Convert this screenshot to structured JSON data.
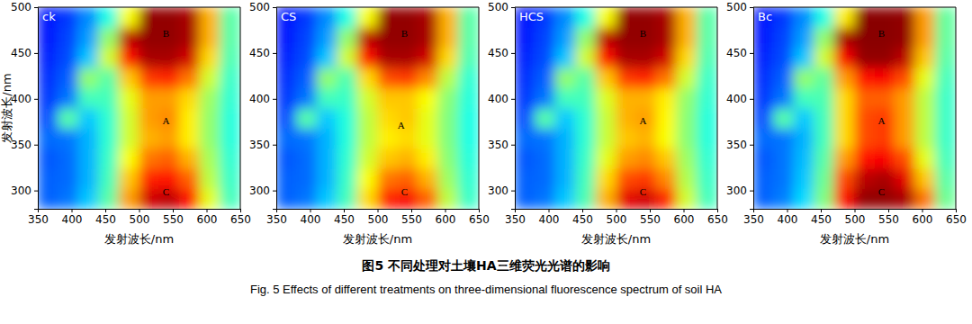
{
  "chart_data": [
    {
      "type": "heatmap",
      "title": "ck",
      "xlabel": "发射波长/nm",
      "ylabel": "发射波长/nm",
      "xlim": [
        350,
        650
      ],
      "ylim": [
        280,
        500
      ],
      "xticks": [
        350,
        400,
        450,
        500,
        550,
        600,
        650
      ],
      "yticks": [
        300,
        350,
        400,
        450,
        500
      ],
      "x_bins": [
        350,
        380,
        410,
        440,
        470,
        500,
        530,
        560,
        590,
        620,
        650
      ],
      "y_bins": [
        280,
        302,
        324,
        346,
        368,
        390,
        412,
        434,
        456,
        478,
        500
      ],
      "zlim": [
        0,
        10
      ],
      "z": [
        [
          2.2,
          2.4,
          3.2,
          4.6,
          7.2,
          9.2,
          9.4,
          8.6,
          6.0,
          4.4
        ],
        [
          2.2,
          2.3,
          3.0,
          4.4,
          6.8,
          8.4,
          8.6,
          7.8,
          5.6,
          4.3
        ],
        [
          2.1,
          2.3,
          3.0,
          4.3,
          6.2,
          7.6,
          7.8,
          7.0,
          5.4,
          4.2
        ],
        [
          2.3,
          2.4,
          3.0,
          4.2,
          5.8,
          7.0,
          7.2,
          6.4,
          5.2,
          4.1
        ],
        [
          2.0,
          4.6,
          3.2,
          4.2,
          5.8,
          7.2,
          7.4,
          6.4,
          5.2,
          4.1
        ],
        [
          1.8,
          2.4,
          4.4,
          4.4,
          6.0,
          7.2,
          7.2,
          6.6,
          5.3,
          4.2
        ],
        [
          1.7,
          2.2,
          5.2,
          4.6,
          6.8,
          8.2,
          8.4,
          7.6,
          5.8,
          4.3
        ],
        [
          1.6,
          2.0,
          3.2,
          5.8,
          8.6,
          9.6,
          9.6,
          9.2,
          6.6,
          4.5
        ],
        [
          1.5,
          1.9,
          2.8,
          5.2,
          9.4,
          9.8,
          9.8,
          9.6,
          7.0,
          4.6
        ],
        [
          1.5,
          1.8,
          2.6,
          4.0,
          6.2,
          9.8,
          9.8,
          9.6,
          7.0,
          4.6
        ]
      ],
      "annotations": [
        {
          "text": "B",
          "x": 540,
          "y": 470
        },
        {
          "text": "A",
          "x": 540,
          "y": 375
        },
        {
          "text": "C",
          "x": 540,
          "y": 297
        }
      ]
    },
    {
      "type": "heatmap",
      "title": "CS",
      "xlabel": "发射波长/nm",
      "xlim": [
        350,
        650
      ],
      "ylim": [
        280,
        500
      ],
      "xticks": [
        350,
        400,
        450,
        500,
        550,
        600,
        650
      ],
      "yticks": [
        300,
        350,
        400,
        450,
        500
      ],
      "x_bins": [
        350,
        380,
        410,
        440,
        470,
        500,
        530,
        560,
        590,
        620,
        650
      ],
      "y_bins": [
        280,
        302,
        324,
        346,
        368,
        390,
        412,
        434,
        456,
        478,
        500
      ],
      "zlim": [
        0,
        10
      ],
      "z": [
        [
          2.2,
          2.4,
          3.2,
          4.4,
          6.6,
          8.4,
          8.8,
          7.8,
          5.6,
          4.3
        ],
        [
          2.2,
          2.3,
          3.0,
          4.3,
          6.2,
          7.6,
          7.8,
          7.0,
          5.3,
          4.2
        ],
        [
          2.1,
          2.3,
          3.0,
          4.2,
          5.8,
          6.8,
          7.0,
          6.4,
          5.1,
          4.1
        ],
        [
          2.3,
          2.4,
          3.0,
          4.1,
          5.6,
          6.4,
          6.6,
          6.0,
          5.0,
          4.0
        ],
        [
          2.0,
          4.6,
          3.2,
          4.1,
          5.6,
          6.6,
          6.8,
          6.0,
          5.0,
          4.0
        ],
        [
          1.8,
          2.4,
          4.4,
          4.3,
          5.8,
          6.8,
          6.8,
          6.2,
          5.1,
          4.1
        ],
        [
          1.7,
          2.2,
          5.2,
          4.5,
          6.6,
          8.0,
          8.2,
          7.4,
          5.6,
          4.2
        ],
        [
          1.6,
          2.0,
          3.2,
          5.8,
          8.6,
          9.6,
          9.6,
          9.2,
          6.6,
          4.5
        ],
        [
          1.5,
          1.9,
          2.8,
          5.2,
          9.4,
          9.8,
          9.8,
          9.6,
          7.0,
          4.6
        ],
        [
          1.5,
          1.8,
          2.6,
          4.0,
          6.2,
          9.8,
          9.8,
          9.6,
          7.0,
          4.6
        ]
      ],
      "annotations": [
        {
          "text": "B",
          "x": 540,
          "y": 470
        },
        {
          "text": "A",
          "x": 535,
          "y": 370
        },
        {
          "text": "C",
          "x": 540,
          "y": 297
        }
      ]
    },
    {
      "type": "heatmap",
      "title": "HCS",
      "xlabel": "发射波长/nm",
      "xlim": [
        350,
        650
      ],
      "ylim": [
        280,
        500
      ],
      "xticks": [
        350,
        400,
        450,
        500,
        550,
        600,
        650
      ],
      "yticks": [
        300,
        350,
        400,
        450,
        500
      ],
      "x_bins": [
        350,
        380,
        410,
        440,
        470,
        500,
        530,
        560,
        590,
        620,
        650
      ],
      "y_bins": [
        280,
        302,
        324,
        346,
        368,
        390,
        412,
        434,
        456,
        478,
        500
      ],
      "zlim": [
        0,
        10
      ],
      "z": [
        [
          2.2,
          2.4,
          3.2,
          4.5,
          7.0,
          9.0,
          9.2,
          8.4,
          5.8,
          4.4
        ],
        [
          2.2,
          2.3,
          3.0,
          4.4,
          6.6,
          8.0,
          8.2,
          7.4,
          5.5,
          4.3
        ],
        [
          2.1,
          2.3,
          3.0,
          4.3,
          6.0,
          7.2,
          7.4,
          6.8,
          5.3,
          4.2
        ],
        [
          2.3,
          2.4,
          3.0,
          4.2,
          5.7,
          6.8,
          7.0,
          6.2,
          5.1,
          4.1
        ],
        [
          2.0,
          4.6,
          3.2,
          4.2,
          5.7,
          7.0,
          7.2,
          6.3,
          5.1,
          4.1
        ],
        [
          1.8,
          2.4,
          4.4,
          4.4,
          5.9,
          7.0,
          7.0,
          6.4,
          5.2,
          4.2
        ],
        [
          1.7,
          2.2,
          5.2,
          4.6,
          6.8,
          8.2,
          8.4,
          7.6,
          5.8,
          4.3
        ],
        [
          1.6,
          2.0,
          3.2,
          5.8,
          8.6,
          9.6,
          9.6,
          9.2,
          6.6,
          4.5
        ],
        [
          1.5,
          1.9,
          2.8,
          5.2,
          9.4,
          9.8,
          9.8,
          9.6,
          7.0,
          4.6
        ],
        [
          1.5,
          1.8,
          2.6,
          4.0,
          6.2,
          9.8,
          9.8,
          9.6,
          7.0,
          4.6
        ]
      ],
      "annotations": [
        {
          "text": "B",
          "x": 540,
          "y": 470
        },
        {
          "text": "A",
          "x": 540,
          "y": 375
        },
        {
          "text": "C",
          "x": 540,
          "y": 297
        }
      ]
    },
    {
      "type": "heatmap",
      "title": "Bc",
      "xlabel": "发射波长/nm",
      "xlim": [
        350,
        650
      ],
      "ylim": [
        280,
        500
      ],
      "xticks": [
        350,
        400,
        450,
        500,
        550,
        600,
        650
      ],
      "yticks": [
        300,
        350,
        400,
        450,
        500
      ],
      "x_bins": [
        350,
        380,
        410,
        440,
        470,
        500,
        530,
        560,
        590,
        620,
        650
      ],
      "y_bins": [
        280,
        302,
        324,
        346,
        368,
        390,
        412,
        434,
        456,
        478,
        500
      ],
      "zlim": [
        0,
        10
      ],
      "z": [
        [
          2.2,
          2.5,
          3.4,
          5.0,
          8.6,
          9.8,
          9.8,
          9.6,
          7.6,
          4.8
        ],
        [
          2.2,
          2.4,
          3.2,
          4.8,
          8.0,
          9.4,
          9.6,
          9.0,
          6.8,
          4.6
        ],
        [
          2.1,
          2.4,
          3.1,
          4.6,
          7.2,
          8.6,
          8.8,
          8.0,
          6.0,
          4.4
        ],
        [
          2.3,
          2.4,
          3.0,
          4.4,
          6.6,
          8.0,
          8.2,
          7.2,
          5.6,
          4.3
        ],
        [
          2.0,
          4.6,
          3.2,
          4.4,
          6.6,
          8.0,
          8.2,
          7.2,
          5.6,
          4.3
        ],
        [
          1.8,
          2.4,
          4.4,
          4.5,
          6.6,
          7.8,
          7.8,
          7.2,
          5.6,
          4.3
        ],
        [
          1.7,
          2.2,
          5.2,
          4.7,
          7.2,
          8.6,
          8.8,
          8.0,
          6.0,
          4.4
        ],
        [
          1.6,
          2.0,
          3.2,
          5.8,
          8.8,
          9.8,
          9.8,
          9.4,
          6.8,
          4.6
        ],
        [
          1.5,
          1.9,
          2.8,
          5.2,
          9.6,
          9.9,
          9.9,
          9.8,
          7.2,
          4.7
        ],
        [
          1.5,
          1.8,
          2.6,
          4.0,
          6.4,
          9.9,
          9.9,
          9.8,
          7.2,
          4.7
        ]
      ],
      "annotations": [
        {
          "text": "B",
          "x": 540,
          "y": 470
        },
        {
          "text": "A",
          "x": 540,
          "y": 375
        },
        {
          "text": "C",
          "x": 540,
          "y": 297
        }
      ]
    }
  ],
  "caption": {
    "zh": "图5   不同处理对土壤HA三维荧光光谱的影响",
    "en": "Fig. 5   Effects of different treatments on three-dimensional fluorescence spectrum of soil HA"
  }
}
